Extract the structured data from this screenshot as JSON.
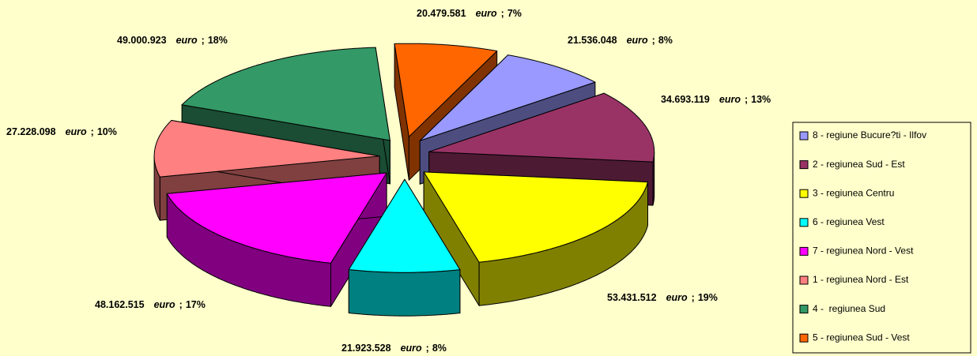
{
  "chart_data": {
    "type": "pie3d",
    "categories": [
      "8 - regiune Bucure?ti - Ilfov",
      "2 - regiunea Sud - Est",
      "3 - regiunea Centru",
      "6 - regiunea Vest",
      "7 - regiunea Nord - Vest",
      "1 - regiunea Nord - Est",
      "4 -  regiunea Sud",
      "5 - regiunea Sud - Vest"
    ],
    "values": [
      21536048,
      34693119,
      53431512,
      21923528,
      48162515,
      27228098,
      49000923,
      20479581
    ],
    "value_labels": [
      "21.536.048",
      "34.693.119",
      "53.431.512",
      "21.923.528",
      "48.162.515",
      "27.228.098",
      "49.000.923",
      "20.479.581"
    ],
    "unit": "euro",
    "separator": ";",
    "percent_labels": [
      "8%",
      "13%",
      "19%",
      "8%",
      "17%",
      "10%",
      "18%",
      "7%"
    ],
    "colors": [
      "#9999ff",
      "#993366",
      "#ffff00",
      "#00ffff",
      "#ff00ff",
      "#ff8080",
      "#339966",
      "#ff6600"
    ],
    "legend": "right"
  }
}
